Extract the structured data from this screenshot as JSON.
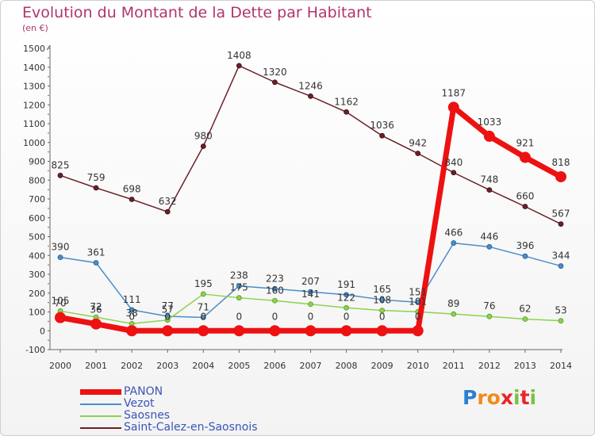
{
  "chart_data": {
    "type": "line",
    "title": "Evolution du Montant de la Dette par Habitant",
    "subtitle": "(en €)",
    "xlabel": "",
    "ylabel": "",
    "x": [
      "2000",
      "2001",
      "2002",
      "2003",
      "2004",
      "2005",
      "2006",
      "2007",
      "2008",
      "2009",
      "2010",
      "2011",
      "2012",
      "2013",
      "2014"
    ],
    "ylim": [
      -100,
      1500
    ],
    "yticks": [
      "-100",
      "0",
      "100",
      "200",
      "300",
      "400",
      "500",
      "600",
      "700",
      "800",
      "900",
      "1000",
      "1100",
      "1200",
      "1300",
      "1400",
      "1500"
    ],
    "grid": false,
    "legend_position": "bottom-left",
    "series": [
      {
        "name": "Saint-Calez-en-Saosnois",
        "color": "#6b1f28",
        "values": [
          825,
          759,
          698,
          632,
          980,
          1408,
          1320,
          1246,
          1162,
          1036,
          942,
          840,
          748,
          660,
          567
        ]
      },
      {
        "name": "Vezot",
        "color": "#4a8dc9",
        "values": [
          390,
          361,
          111,
          77,
          71,
          238,
          223,
          207,
          191,
          165,
          151,
          466,
          446,
          396,
          344
        ]
      },
      {
        "name": "Saosnes",
        "color": "#8cd24e",
        "values": [
          105,
          72,
          38,
          57,
          195,
          175,
          160,
          141,
          122,
          108,
          101,
          89,
          76,
          62,
          53
        ]
      },
      {
        "name": "PANON",
        "color": "#ee1111",
        "values": [
          70,
          36,
          0,
          0,
          0,
          0,
          0,
          0,
          0,
          0,
          0,
          1187,
          1033,
          921,
          818
        ]
      }
    ],
    "data_labels": [
      {
        "series": "Saint-Calez-en-Saosnois",
        "labels": [
          "825",
          "759",
          "698",
          "632",
          "980",
          "1408",
          "1320",
          "1246",
          "1162",
          "1036",
          "942",
          "840",
          "748",
          "660",
          "567"
        ]
      },
      {
        "series": "Vezot",
        "labels": [
          "390",
          "361",
          "111",
          "77",
          "71",
          "238",
          "223",
          "207",
          "191",
          "165",
          "151",
          "466",
          "446",
          "396",
          "344"
        ]
      },
      {
        "series": "Saosnes",
        "labels": [
          "105",
          "72",
          "38",
          "57",
          "195",
          "175",
          "160",
          "141",
          "122",
          "108",
          "101",
          "89",
          "76",
          "62",
          "53"
        ]
      },
      {
        "series": "PANON",
        "labels": [
          "70",
          "36",
          "0",
          "0",
          "0",
          "0",
          "0",
          "0",
          "0",
          "0",
          "0",
          "1187",
          "1033",
          "921",
          "818"
        ]
      }
    ]
  },
  "legend": {
    "items": [
      {
        "label": "PANON",
        "color": "#ee1111"
      },
      {
        "label": "Vezot",
        "color": "#4a8dc9"
      },
      {
        "label": "Saosnes",
        "color": "#8cd24e"
      },
      {
        "label": "Saint-Calez-en-Saosnois",
        "color": "#6b1f28"
      }
    ]
  },
  "logo": {
    "letters": [
      "P",
      "r",
      "o",
      "x",
      "i",
      "t",
      "i"
    ],
    "colors": [
      "#2a7fd4",
      "#f28a1a",
      "#f28a1a",
      "#e8262a",
      "#7ac143",
      "#e8262a",
      "#7ac143"
    ]
  }
}
